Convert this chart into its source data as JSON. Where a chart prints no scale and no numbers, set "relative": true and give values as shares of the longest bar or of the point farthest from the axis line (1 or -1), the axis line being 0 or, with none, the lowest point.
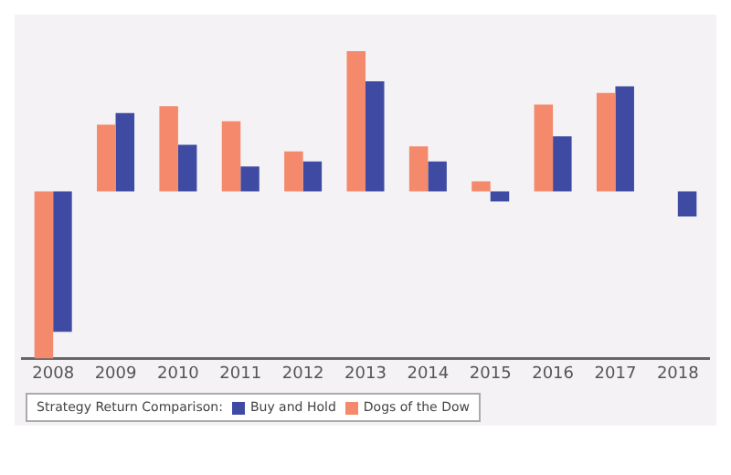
{
  "chart_data": {
    "type": "bar",
    "relative": true,
    "categories": [
      "2008",
      "2009",
      "2010",
      "2011",
      "2012",
      "2013",
      "2014",
      "2015",
      "2016",
      "2017",
      "2018"
    ],
    "series": [
      {
        "name": "Dogs of the Dow",
        "color": "#f4896b",
        "values": [
          -1,
          0.4,
          0.51,
          0.42,
          0.24,
          0.84,
          0.27,
          0.06,
          0.52,
          0.59,
          null
        ]
      },
      {
        "name": "Buy and Hold",
        "color": "#3f4ba3",
        "values": [
          -0.84,
          0.47,
          0.28,
          0.15,
          0.18,
          0.66,
          0.18,
          -0.06,
          0.33,
          0.63,
          -0.15
        ]
      }
    ],
    "legend_title": "Strategy Return Comparison:",
    "legend": "bottom left"
  }
}
